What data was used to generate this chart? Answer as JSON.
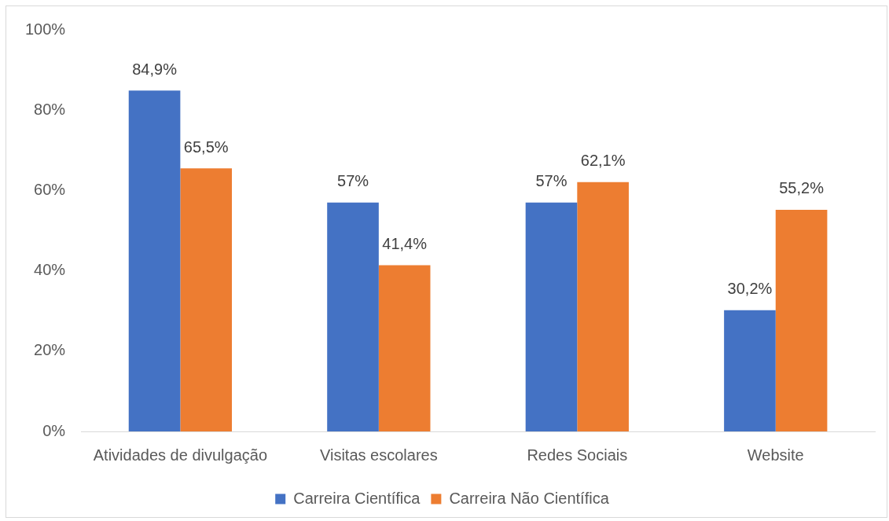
{
  "chart_data": {
    "type": "bar",
    "categories": [
      "Atividades de divulgação",
      "Visitas escolares",
      "Redes Sociais",
      "Website"
    ],
    "series": [
      {
        "name": "Carreira Científica",
        "color": "#4472c4",
        "values": [
          84.9,
          57,
          57,
          30.2
        ],
        "value_labels": [
          "84,9%",
          "57%",
          "57%",
          "30,2%"
        ]
      },
      {
        "name": "Carreira Não Científica",
        "color": "#ed7d31",
        "values": [
          65.5,
          41.4,
          62.1,
          55.2
        ],
        "value_labels": [
          "65,5%",
          "41,4%",
          "62,1%",
          "55,2%"
        ]
      }
    ],
    "ylim": [
      0,
      100
    ],
    "yticks": [
      {
        "value": 0,
        "label": "0%"
      },
      {
        "value": 20,
        "label": "20%"
      },
      {
        "value": 40,
        "label": "40%"
      },
      {
        "value": 60,
        "label": "60%"
      },
      {
        "value": 80,
        "label": "80%"
      },
      {
        "value": 100,
        "label": "100%"
      }
    ],
    "legend": "bottom"
  }
}
